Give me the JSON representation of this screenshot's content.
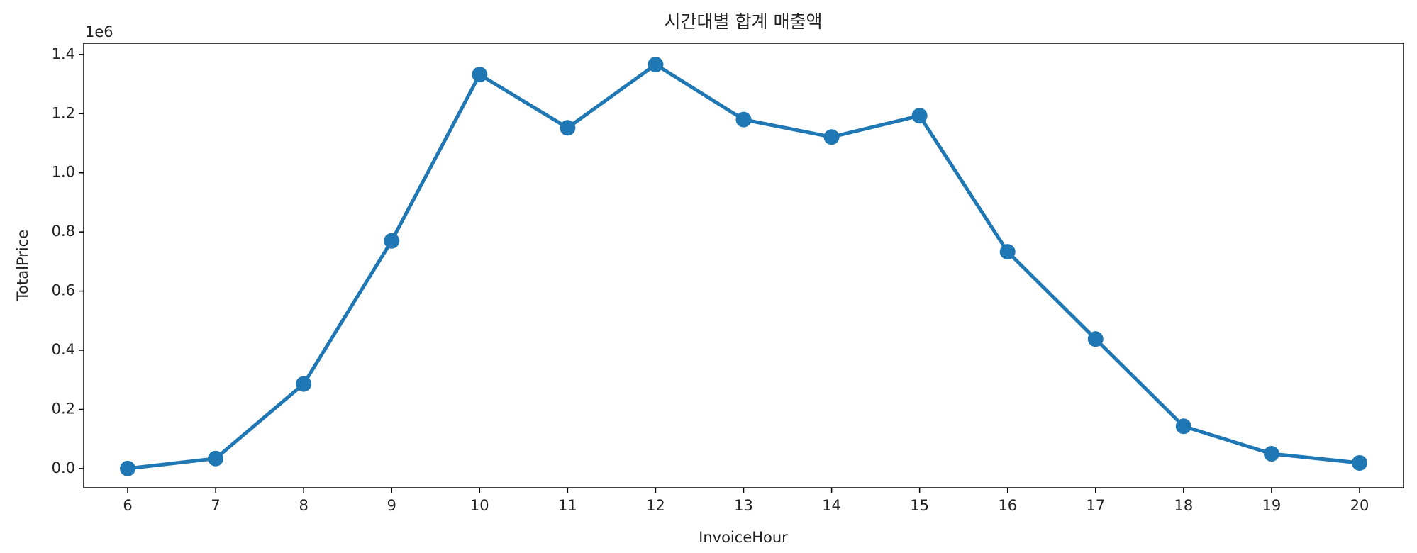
{
  "chart_data": {
    "type": "line",
    "title": "시간대별 합계 매출액",
    "x_label": "InvoiceHour",
    "y_label": "TotalPrice",
    "y_offset_label": "1e6",
    "categories": [
      "6",
      "7",
      "8",
      "9",
      "10",
      "11",
      "12",
      "13",
      "14",
      "15",
      "16",
      "17",
      "18",
      "19",
      "20"
    ],
    "values": [
      0,
      34000,
      286000,
      770000,
      1332000,
      1152000,
      1366000,
      1180000,
      1121000,
      1193000,
      733000,
      438000,
      143000,
      50000,
      19000
    ],
    "color": "#1f77b4",
    "ylim": [
      -65000,
      1438000
    ],
    "yticks": [
      {
        "value": 0,
        "label": "0.0"
      },
      {
        "value": 200000,
        "label": "0.2"
      },
      {
        "value": 400000,
        "label": "0.4"
      },
      {
        "value": 600000,
        "label": "0.6"
      },
      {
        "value": 800000,
        "label": "0.8"
      },
      {
        "value": 1000000,
        "label": "1.0"
      },
      {
        "value": 1200000,
        "label": "1.2"
      },
      {
        "value": 1400000,
        "label": "1.4"
      }
    ],
    "grid": false
  }
}
